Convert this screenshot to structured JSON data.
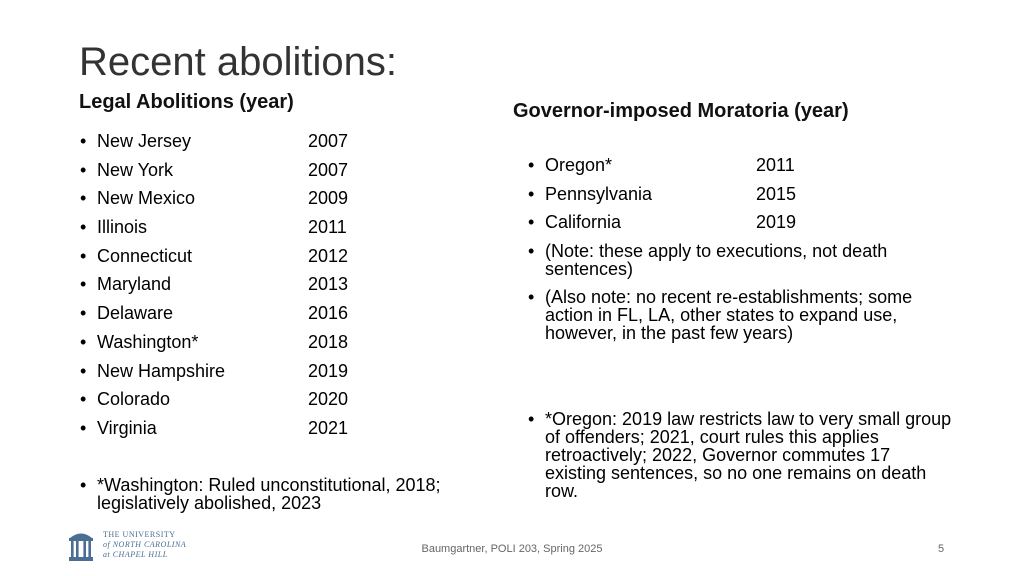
{
  "slide": {
    "title": "Recent abolitions:",
    "page_number": "5",
    "footer": "Baumgartner, POLI 203, Spring 2025"
  },
  "left": {
    "heading": "Legal Abolitions (year)",
    "items": [
      {
        "state": "New Jersey",
        "year": "2007"
      },
      {
        "state": "New York",
        "year": "2007"
      },
      {
        "state": "New Mexico",
        "year": "2009"
      },
      {
        "state": "Illinois",
        "year": "2011"
      },
      {
        "state": "Connecticut",
        "year": "2012"
      },
      {
        "state": "Maryland",
        "year": "2013"
      },
      {
        "state": "Delaware",
        "year": "2016"
      },
      {
        "state": "Washington*",
        "year": "2018"
      },
      {
        "state": "New Hampshire",
        "year": "2019"
      },
      {
        "state": "Colorado",
        "year": "2020"
      },
      {
        "state": "Virginia",
        "year": "2021"
      }
    ],
    "note": "*Washington: Ruled unconstitutional, 2018; legislatively abolished, 2023"
  },
  "right": {
    "heading": "Governor-imposed Moratoria (year)",
    "items": [
      {
        "state": "Oregon*",
        "year": "2011"
      },
      {
        "state": "Pennsylvania",
        "year": "2015"
      },
      {
        "state": "California",
        "year": "2019"
      }
    ],
    "notes": [
      "(Note: these apply to executions, not death sentences)",
      "(Also note: no recent re-establishments; some action in FL, LA, other states to expand use, however, in the past few years)"
    ],
    "oregon_note": "*Oregon: 2019 law restricts law to very small group of offenders; 2021, court rules this applies retroactively; 2022, Governor commutes 17 existing sentences, so no one remains on death row."
  },
  "logo": {
    "line1": "THE UNIVERSITY",
    "line2": "of NORTH CAROLINA",
    "line3": "at CHAPEL HILL"
  },
  "colors": {
    "title": "#333333",
    "logo_blue": "#4b6e93"
  }
}
